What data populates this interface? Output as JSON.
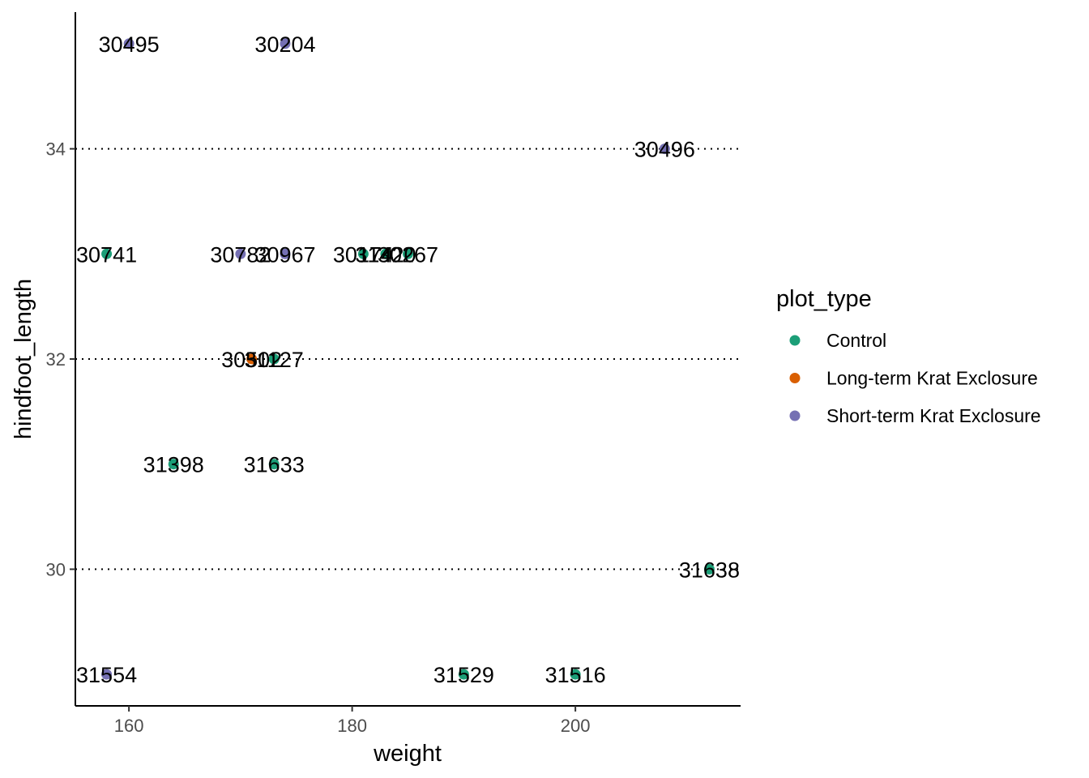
{
  "chart_data": {
    "type": "scatter",
    "title": "",
    "xlabel": "weight",
    "ylabel": "hindfoot_length",
    "xlim": [
      155.2,
      214.8
    ],
    "ylim": [
      28.7,
      35.3
    ],
    "xticks": [
      160,
      180,
      200
    ],
    "yticks": [
      30,
      32,
      34
    ],
    "grid": "horizontal-dotted-major",
    "legend": {
      "title": "plot_type",
      "placement": "right",
      "entries": [
        {
          "name": "Control",
          "color": "#1B9E77"
        },
        {
          "name": "Long-term Krat Exclosure",
          "color": "#D95F02"
        },
        {
          "name": "Short-term Krat Exclosure",
          "color": "#7570B3"
        }
      ]
    },
    "points": [
      {
        "label": "30495",
        "x": 160,
        "y": 35,
        "group": "Short-term Krat Exclosure"
      },
      {
        "label": "30204",
        "x": 174,
        "y": 35,
        "group": "Short-term Krat Exclosure"
      },
      {
        "label": "30496",
        "x": 208,
        "y": 34,
        "group": "Short-term Krat Exclosure"
      },
      {
        "label": "30741",
        "x": 158,
        "y": 33,
        "group": "Control"
      },
      {
        "label": "30782",
        "x": 170,
        "y": 33,
        "group": "Short-term Krat Exclosure"
      },
      {
        "label": "30967",
        "x": 174,
        "y": 33,
        "group": "Short-term Krat Exclosure"
      },
      {
        "label": "30174",
        "x": 181,
        "y": 33,
        "group": "Control"
      },
      {
        "label": "31420",
        "x": 183,
        "y": 33,
        "group": "Control"
      },
      {
        "label": "30267",
        "x": 185,
        "y": 33,
        "group": "Control"
      },
      {
        "label": "30502",
        "x": 171,
        "y": 32,
        "group": "Long-term Krat Exclosure"
      },
      {
        "label": "31127",
        "x": 173,
        "y": 32,
        "group": "Control"
      },
      {
        "label": "31398",
        "x": 164,
        "y": 31,
        "group": "Control"
      },
      {
        "label": "31633",
        "x": 173,
        "y": 31,
        "group": "Control"
      },
      {
        "label": "31638",
        "x": 212,
        "y": 30,
        "group": "Control"
      },
      {
        "label": "31554",
        "x": 158,
        "y": 29,
        "group": "Short-term Krat Exclosure"
      },
      {
        "label": "31529",
        "x": 190,
        "y": 29,
        "group": "Control"
      },
      {
        "label": "31516",
        "x": 200,
        "y": 29,
        "group": "Control"
      }
    ]
  }
}
